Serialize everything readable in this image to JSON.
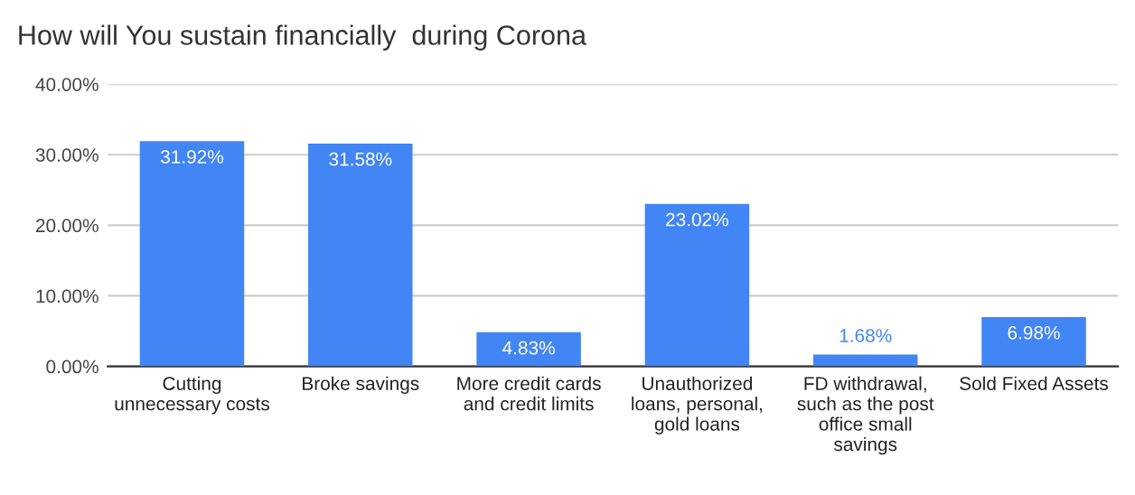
{
  "chart_data": {
    "type": "bar",
    "title": "How will You sustain financially  during Corona",
    "categories": [
      "Cutting\nunnecessary costs",
      "Broke savings",
      "More credit cards\nand credit limits",
      "Unauthorized\nloans, personal,\ngold loans",
      "FD withdrawal,\nsuch as the post\noffice small\nsavings",
      "Sold Fixed Assets"
    ],
    "values": [
      31.92,
      31.58,
      4.83,
      23.02,
      1.68,
      6.98
    ],
    "value_labels": [
      "31.92%",
      "31.58%",
      "4.83%",
      "23.02%",
      "1.68%",
      "6.98%"
    ],
    "color": "#4285f4",
    "ylim": [
      0,
      40
    ],
    "yticks": [
      {
        "value": 0,
        "label": "0.00%"
      },
      {
        "value": 10,
        "label": "10.00%"
      },
      {
        "value": 20,
        "label": "20.00%"
      },
      {
        "value": 30,
        "label": "30.00%"
      },
      {
        "value": 40,
        "label": "40.00%"
      }
    ],
    "grid": "y"
  }
}
